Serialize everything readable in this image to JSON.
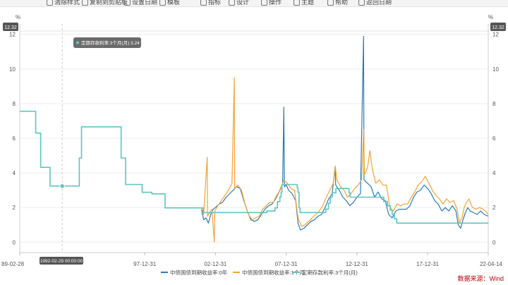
{
  "toolbar": {
    "items": [
      {
        "label": "清除样式"
      },
      {
        "label": "复制到剪贴板"
      },
      {
        "label": "设置日期"
      },
      {
        "label": "模板"
      },
      {
        "label": "指标"
      },
      {
        "label": "设计"
      },
      {
        "label": "操作"
      },
      {
        "label": "主题"
      },
      {
        "label": "帮助"
      },
      {
        "label": "返回日期"
      }
    ]
  },
  "tooltip": {
    "text": "定期存款利率:3个月(月)  3.24  %",
    "date_label": "1992-02-29 00:00:00",
    "value_badge": "12.32",
    "color": "#5dc4bf"
  },
  "source_note": "数据来源：Wind",
  "chart_data": {
    "type": "line",
    "title": "",
    "ylabel_left": "%",
    "ylabel_right": "%",
    "ylim": [
      -0.6,
      12.6
    ],
    "yticks": [
      0,
      2,
      4,
      6,
      8,
      10,
      12
    ],
    "xlim": [
      "1989-02-28",
      "2022-04-14"
    ],
    "xticks": [
      "89-02-28",
      "97-12-31",
      "02-12-31",
      "07-12-31",
      "12-12-31",
      "17-12-31",
      "22-04-14"
    ],
    "legend_position": "bottom",
    "series": [
      {
        "name": "中债国债到期收益率:0年",
        "color": "#2b7ab5",
        "points": [
          [
            "2002-01-04",
            1.9
          ],
          [
            "2002-03-01",
            1.3
          ],
          [
            "2002-05-01",
            1.4
          ],
          [
            "2002-07-01",
            1.1
          ],
          [
            "2002-09-01",
            1.6
          ],
          [
            "2002-11-01",
            1.9
          ],
          [
            "2003-01-01",
            2.0
          ],
          [
            "2003-04-01",
            2.2
          ],
          [
            "2003-07-01",
            2.3
          ],
          [
            "2003-10-01",
            2.6
          ],
          [
            "2004-01-01",
            2.8
          ],
          [
            "2004-04-01",
            3.0
          ],
          [
            "2004-07-01",
            3.2
          ],
          [
            "2004-10-01",
            3.1
          ],
          [
            "2005-01-01",
            2.4
          ],
          [
            "2005-04-01",
            1.8
          ],
          [
            "2005-07-01",
            1.3
          ],
          [
            "2005-10-01",
            1.2
          ],
          [
            "2006-01-01",
            1.3
          ],
          [
            "2006-04-01",
            1.6
          ],
          [
            "2006-07-01",
            1.9
          ],
          [
            "2006-10-01",
            2.1
          ],
          [
            "2007-01-01",
            2.2
          ],
          [
            "2007-04-01",
            2.5
          ],
          [
            "2007-07-01",
            2.9
          ],
          [
            "2007-10-01",
            3.4
          ],
          [
            "2007-11-01",
            7.8
          ],
          [
            "2007-11-15",
            3.2
          ],
          [
            "2008-01-01",
            3.3
          ],
          [
            "2008-03-01",
            3.0
          ],
          [
            "2008-06-01",
            2.8
          ],
          [
            "2008-09-01",
            2.4
          ],
          [
            "2008-11-01",
            1.1
          ],
          [
            "2009-01-01",
            0.7
          ],
          [
            "2009-04-01",
            0.8
          ],
          [
            "2009-07-01",
            1.0
          ],
          [
            "2009-10-01",
            1.2
          ],
          [
            "2010-01-01",
            1.3
          ],
          [
            "2010-04-01",
            1.5
          ],
          [
            "2010-07-01",
            1.6
          ],
          [
            "2010-10-01",
            2.0
          ],
          [
            "2011-01-01",
            2.5
          ],
          [
            "2011-04-01",
            2.8
          ],
          [
            "2011-06-15",
            4.3
          ],
          [
            "2011-07-01",
            3.3
          ],
          [
            "2011-10-01",
            3.0
          ],
          [
            "2012-01-01",
            2.6
          ],
          [
            "2012-04-01",
            2.4
          ],
          [
            "2012-07-01",
            2.1
          ],
          [
            "2012-10-01",
            2.3
          ],
          [
            "2013-01-01",
            2.6
          ],
          [
            "2013-04-01",
            2.8
          ],
          [
            "2013-06-20",
            11.9
          ],
          [
            "2013-07-01",
            3.6
          ],
          [
            "2013-10-01",
            3.4
          ],
          [
            "2014-01-01",
            3.2
          ],
          [
            "2014-04-01",
            2.6
          ],
          [
            "2014-07-01",
            2.9
          ],
          [
            "2014-10-01",
            2.5
          ],
          [
            "2015-01-01",
            2.4
          ],
          [
            "2015-04-01",
            1.6
          ],
          [
            "2015-07-01",
            1.4
          ],
          [
            "2015-10-01",
            1.8
          ],
          [
            "2016-01-01",
            1.9
          ],
          [
            "2016-04-01",
            1.9
          ],
          [
            "2016-07-01",
            1.9
          ],
          [
            "2016-10-01",
            2.1
          ],
          [
            "2017-01-01",
            2.6
          ],
          [
            "2017-04-01",
            2.9
          ],
          [
            "2017-07-01",
            3.0
          ],
          [
            "2017-10-01",
            3.3
          ],
          [
            "2018-01-01",
            3.1
          ],
          [
            "2018-04-01",
            2.8
          ],
          [
            "2018-07-01",
            2.4
          ],
          [
            "2018-10-01",
            2.2
          ],
          [
            "2019-01-01",
            1.8
          ],
          [
            "2019-04-01",
            2.0
          ],
          [
            "2019-07-01",
            1.8
          ],
          [
            "2019-10-01",
            2.1
          ],
          [
            "2020-01-01",
            1.8
          ],
          [
            "2020-03-01",
            1.0
          ],
          [
            "2020-05-01",
            0.8
          ],
          [
            "2020-07-01",
            1.3
          ],
          [
            "2020-09-01",
            1.7
          ],
          [
            "2020-11-01",
            2.0
          ],
          [
            "2021-01-01",
            1.8
          ],
          [
            "2021-04-01",
            1.7
          ],
          [
            "2021-07-01",
            1.6
          ],
          [
            "2021-10-01",
            1.8
          ],
          [
            "2022-01-01",
            1.6
          ],
          [
            "2022-04-14",
            1.5
          ]
        ]
      },
      {
        "name": "中债国债到期收益率:1个月",
        "color": "#f7a233",
        "points": [
          [
            "2002-01-04",
            2.0
          ],
          [
            "2002-03-01",
            1.6
          ],
          [
            "2002-06-01",
            4.9
          ],
          [
            "2002-06-10",
            1.5
          ],
          [
            "2002-08-01",
            1.7
          ],
          [
            "2002-10-01",
            1.9
          ],
          [
            "2002-12-01",
            0.0
          ],
          [
            "2002-12-15",
            1.8
          ],
          [
            "2003-03-01",
            2.1
          ],
          [
            "2003-06-01",
            2.4
          ],
          [
            "2003-09-01",
            2.7
          ],
          [
            "2003-12-01",
            3.0
          ],
          [
            "2004-03-01",
            3.4
          ],
          [
            "2004-05-01",
            9.5
          ],
          [
            "2004-05-10",
            3.1
          ],
          [
            "2004-08-01",
            3.3
          ],
          [
            "2004-11-01",
            3.0
          ],
          [
            "2005-02-01",
            2.2
          ],
          [
            "2005-05-01",
            1.6
          ],
          [
            "2005-08-01",
            1.3
          ],
          [
            "2005-11-01",
            1.4
          ],
          [
            "2006-02-01",
            1.5
          ],
          [
            "2006-05-01",
            1.9
          ],
          [
            "2006-08-01",
            2.1
          ],
          [
            "2006-11-01",
            2.3
          ],
          [
            "2007-02-01",
            2.3
          ],
          [
            "2007-05-01",
            2.7
          ],
          [
            "2007-08-01",
            3.0
          ],
          [
            "2007-11-01",
            3.6
          ],
          [
            "2008-02-01",
            3.4
          ],
          [
            "2008-05-01",
            3.1
          ],
          [
            "2008-08-01",
            3.0
          ],
          [
            "2008-11-01",
            1.4
          ],
          [
            "2009-02-01",
            0.9
          ],
          [
            "2009-05-01",
            1.0
          ],
          [
            "2009-08-01",
            1.2
          ],
          [
            "2009-11-01",
            1.4
          ],
          [
            "2010-02-01",
            1.6
          ],
          [
            "2010-05-01",
            1.8
          ],
          [
            "2010-08-01",
            2.1
          ],
          [
            "2010-11-01",
            2.6
          ],
          [
            "2011-02-01",
            3.0
          ],
          [
            "2011-05-01",
            3.4
          ],
          [
            "2011-06-20",
            4.4
          ],
          [
            "2011-08-01",
            3.6
          ],
          [
            "2011-11-01",
            3.2
          ],
          [
            "2012-02-01",
            3.0
          ],
          [
            "2012-05-01",
            2.6
          ],
          [
            "2012-08-01",
            2.8
          ],
          [
            "2012-11-01",
            3.1
          ],
          [
            "2013-02-01",
            3.3
          ],
          [
            "2013-05-01",
            3.6
          ],
          [
            "2013-06-25",
            6.5
          ],
          [
            "2013-07-10",
            3.9
          ],
          [
            "2013-10-01",
            4.3
          ],
          [
            "2013-12-01",
            5.3
          ],
          [
            "2014-02-01",
            4.2
          ],
          [
            "2014-05-01",
            3.4
          ],
          [
            "2014-08-01",
            3.6
          ],
          [
            "2014-11-01",
            3.3
          ],
          [
            "2015-02-01",
            3.3
          ],
          [
            "2015-05-01",
            2.0
          ],
          [
            "2015-08-01",
            1.8
          ],
          [
            "2015-11-01",
            2.2
          ],
          [
            "2016-02-01",
            2.1
          ],
          [
            "2016-05-01",
            2.2
          ],
          [
            "2016-08-01",
            2.2
          ],
          [
            "2016-11-01",
            2.6
          ],
          [
            "2017-02-01",
            2.9
          ],
          [
            "2017-05-01",
            3.3
          ],
          [
            "2017-08-01",
            3.5
          ],
          [
            "2017-11-01",
            3.8
          ],
          [
            "2018-02-01",
            3.4
          ],
          [
            "2018-05-01",
            3.0
          ],
          [
            "2018-08-01",
            2.7
          ],
          [
            "2018-11-01",
            2.5
          ],
          [
            "2019-02-01",
            2.2
          ],
          [
            "2019-05-01",
            2.5
          ],
          [
            "2019-08-01",
            2.3
          ],
          [
            "2019-11-01",
            2.4
          ],
          [
            "2020-02-01",
            1.9
          ],
          [
            "2020-04-01",
            1.1
          ],
          [
            "2020-06-01",
            1.4
          ],
          [
            "2020-08-01",
            2.0
          ],
          [
            "2020-10-01",
            2.3
          ],
          [
            "2020-12-01",
            2.5
          ],
          [
            "2021-03-01",
            2.0
          ],
          [
            "2021-06-01",
            1.9
          ],
          [
            "2021-09-01",
            2.0
          ],
          [
            "2021-12-01",
            1.9
          ],
          [
            "2022-02-01",
            1.8
          ],
          [
            "2022-04-14",
            1.6
          ]
        ]
      },
      {
        "name": "定期存款利率:3个月(月)",
        "color": "#5dc4bf",
        "step": true,
        "points": [
          [
            "1989-02-28",
            7.56
          ],
          [
            "1990-04-15",
            6.3
          ],
          [
            "1990-08-21",
            4.32
          ],
          [
            "1991-04-21",
            3.24
          ],
          [
            "1993-05-15",
            4.86
          ],
          [
            "1993-07-11",
            6.66
          ],
          [
            "1996-05-01",
            4.86
          ],
          [
            "1996-08-23",
            3.33
          ],
          [
            "1997-10-23",
            2.88
          ],
          [
            "1998-03-25",
            2.88
          ],
          [
            "1998-07-01",
            2.79
          ],
          [
            "1998-12-07",
            2.79
          ],
          [
            "1999-06-10",
            1.98
          ],
          [
            "2002-02-21",
            1.71
          ],
          [
            "2006-08-19",
            1.8
          ],
          [
            "2007-03-18",
            1.98
          ],
          [
            "2007-05-19",
            2.34
          ],
          [
            "2007-07-21",
            2.61
          ],
          [
            "2007-08-22",
            2.88
          ],
          [
            "2007-09-15",
            3.33
          ],
          [
            "2008-10-09",
            3.15
          ],
          [
            "2008-10-30",
            2.88
          ],
          [
            "2008-11-27",
            1.98
          ],
          [
            "2008-12-23",
            1.71
          ],
          [
            "2010-10-20",
            1.91
          ],
          [
            "2010-12-26",
            2.25
          ],
          [
            "2011-02-09",
            2.6
          ],
          [
            "2011-04-06",
            2.85
          ],
          [
            "2011-07-07",
            3.1
          ],
          [
            "2012-06-08",
            2.85
          ],
          [
            "2012-07-06",
            2.6
          ],
          [
            "2014-11-22",
            2.35
          ],
          [
            "2015-03-01",
            2.1
          ],
          [
            "2015-05-11",
            1.85
          ],
          [
            "2015-06-28",
            1.6
          ],
          [
            "2015-08-26",
            1.35
          ],
          [
            "2015-10-24",
            1.1
          ],
          [
            "2022-04-14",
            1.1
          ]
        ]
      }
    ]
  }
}
